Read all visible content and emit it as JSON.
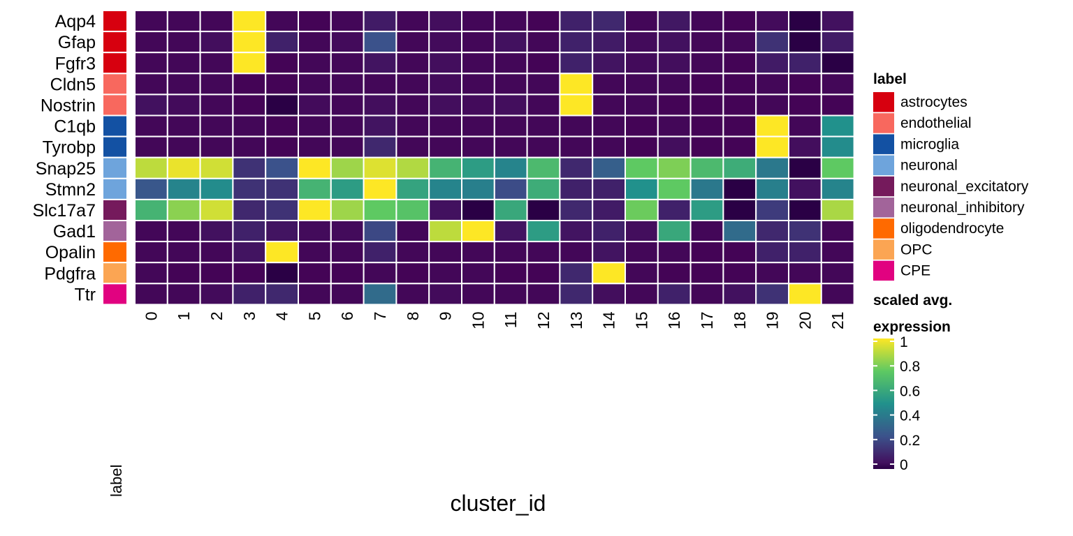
{
  "chart_data": {
    "type": "heatmap",
    "xlabel": "cluster_id",
    "label_column_header": "label",
    "rows": [
      "Aqp4",
      "Gfap",
      "Fgfr3",
      "Cldn5",
      "Nostrin",
      "C1qb",
      "Tyrobp",
      "Snap25",
      "Stmn2",
      "Slc17a7",
      "Gad1",
      "Opalin",
      "Pdgfra",
      "Ttr"
    ],
    "row_labels": [
      "astrocytes",
      "astrocytes",
      "astrocytes",
      "endothelial",
      "endothelial",
      "microglia",
      "microglia",
      "neuronal",
      "neuronal",
      "neuronal_excitatory",
      "neuronal_inhibitory",
      "oligodendrocyte",
      "OPC",
      "CPE"
    ],
    "columns": [
      "0",
      "1",
      "2",
      "3",
      "4",
      "5",
      "6",
      "7",
      "8",
      "9",
      "10",
      "11",
      "12",
      "13",
      "14",
      "15",
      "16",
      "17",
      "18",
      "19",
      "20",
      "21"
    ],
    "values": [
      [
        0.02,
        0.02,
        0.02,
        1.0,
        0.02,
        0.01,
        0.02,
        0.08,
        0.02,
        0.04,
        0.02,
        0.02,
        0.01,
        0.1,
        0.12,
        0.02,
        0.07,
        0.02,
        0.01,
        0.03,
        0.0,
        0.05
      ],
      [
        0.02,
        0.02,
        0.04,
        1.0,
        0.1,
        0.02,
        0.03,
        0.25,
        0.02,
        0.03,
        0.02,
        0.05,
        0.02,
        0.1,
        0.08,
        0.03,
        0.05,
        0.02,
        0.02,
        0.15,
        0.0,
        0.08
      ],
      [
        0.02,
        0.02,
        0.02,
        1.0,
        0.01,
        0.02,
        0.02,
        0.06,
        0.02,
        0.04,
        0.02,
        0.02,
        0.01,
        0.1,
        0.06,
        0.03,
        0.04,
        0.02,
        0.01,
        0.08,
        0.1,
        0.0
      ],
      [
        0.02,
        0.02,
        0.02,
        0.01,
        0.01,
        0.02,
        0.02,
        0.02,
        0.02,
        0.03,
        0.02,
        0.02,
        0.02,
        1.0,
        0.02,
        0.02,
        0.02,
        0.01,
        0.01,
        0.02,
        0.01,
        0.02
      ],
      [
        0.05,
        0.03,
        0.02,
        0.01,
        0.0,
        0.03,
        0.02,
        0.04,
        0.02,
        0.04,
        0.03,
        0.04,
        0.02,
        1.0,
        0.02,
        0.02,
        0.01,
        0.01,
        0.01,
        0.02,
        0.01,
        0.01
      ],
      [
        0.02,
        0.02,
        0.02,
        0.02,
        0.01,
        0.02,
        0.02,
        0.06,
        0.02,
        0.02,
        0.02,
        0.02,
        0.02,
        0.02,
        0.02,
        0.01,
        0.02,
        0.01,
        0.01,
        1.0,
        0.02,
        0.5
      ],
      [
        0.02,
        0.02,
        0.02,
        0.02,
        0.01,
        0.02,
        0.02,
        0.12,
        0.02,
        0.02,
        0.02,
        0.02,
        0.02,
        0.02,
        0.02,
        0.01,
        0.04,
        0.01,
        0.01,
        1.0,
        0.04,
        0.48
      ],
      [
        0.9,
        0.97,
        0.93,
        0.15,
        0.25,
        1.0,
        0.85,
        0.95,
        0.88,
        0.65,
        0.55,
        0.45,
        0.68,
        0.12,
        0.3,
        0.75,
        0.8,
        0.68,
        0.62,
        0.4,
        0.0,
        0.75
      ],
      [
        0.27,
        0.45,
        0.48,
        0.15,
        0.15,
        0.65,
        0.55,
        1.0,
        0.58,
        0.45,
        0.43,
        0.23,
        0.62,
        0.1,
        0.1,
        0.5,
        0.75,
        0.4,
        0.0,
        0.43,
        0.05,
        0.45
      ],
      [
        0.65,
        0.82,
        0.93,
        0.12,
        0.15,
        1.0,
        0.85,
        0.75,
        0.72,
        0.05,
        0.0,
        0.6,
        0.0,
        0.12,
        0.08,
        0.77,
        0.1,
        0.55,
        0.0,
        0.18,
        0.0,
        0.87
      ],
      [
        0.02,
        0.02,
        0.05,
        0.1,
        0.06,
        0.03,
        0.03,
        0.22,
        0.02,
        0.9,
        1.0,
        0.06,
        0.55,
        0.06,
        0.1,
        0.04,
        0.6,
        0.02,
        0.35,
        0.12,
        0.15,
        0.02
      ],
      [
        0.02,
        0.02,
        0.02,
        0.06,
        1.0,
        0.02,
        0.02,
        0.1,
        0.02,
        0.02,
        0.02,
        0.02,
        0.02,
        0.02,
        0.06,
        0.02,
        0.02,
        0.01,
        0.01,
        0.1,
        0.1,
        0.02
      ],
      [
        0.02,
        0.01,
        0.01,
        0.01,
        0.0,
        0.01,
        0.01,
        0.02,
        0.01,
        0.02,
        0.02,
        0.01,
        0.01,
        0.12,
        1.0,
        0.02,
        0.01,
        0.01,
        0.01,
        0.02,
        0.02,
        0.02
      ],
      [
        0.02,
        0.02,
        0.03,
        0.1,
        0.12,
        0.02,
        0.02,
        0.35,
        0.02,
        0.03,
        0.02,
        0.02,
        0.02,
        0.12,
        0.04,
        0.02,
        0.1,
        0.02,
        0.05,
        0.15,
        1.0,
        0.02
      ]
    ],
    "color_scale": {
      "name": "viridis",
      "stops": [
        "#440154",
        "#3b528b",
        "#21918c",
        "#5ec962",
        "#fde725"
      ],
      "min_color": "#2a0045",
      "domain": [
        0,
        1
      ]
    },
    "legend_label": {
      "title": "label",
      "entries": [
        {
          "name": "astrocytes",
          "color": "#d7000f"
        },
        {
          "name": "endothelial",
          "color": "#f8685e"
        },
        {
          "name": "microglia",
          "color": "#1351a3"
        },
        {
          "name": "neuronal",
          "color": "#6ea4dc"
        },
        {
          "name": "neuronal_excitatory",
          "color": "#751a5c"
        },
        {
          "name": "neuronal_inhibitory",
          "color": "#a2649a"
        },
        {
          "name": "oligodendrocyte",
          "color": "#ff6a00"
        },
        {
          "name": "OPC",
          "color": "#fba553"
        },
        {
          "name": "CPE",
          "color": "#e10280"
        }
      ]
    },
    "legend_scale": {
      "title_line1": "scaled avg.",
      "title_line2": "expression",
      "ticks": [
        {
          "value": 1,
          "label": "1"
        },
        {
          "value": 0.8,
          "label": "0.8"
        },
        {
          "value": 0.6,
          "label": "0.6"
        },
        {
          "value": 0.4,
          "label": "0.4"
        },
        {
          "value": 0.2,
          "label": "0.2"
        },
        {
          "value": 0,
          "label": "0"
        }
      ]
    }
  }
}
